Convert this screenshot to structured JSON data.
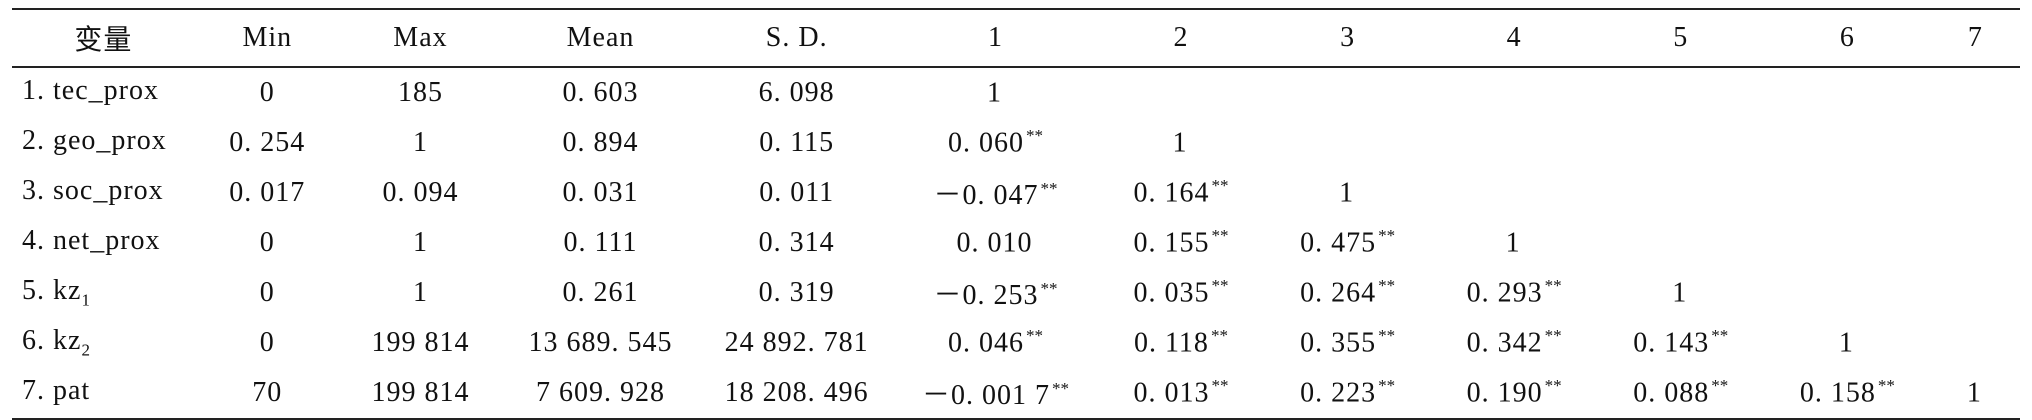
{
  "table": {
    "headers": [
      "变量",
      "Min",
      "Max",
      "Mean",
      "S. D.",
      "1",
      "2",
      "3",
      "4",
      "5",
      "6",
      "7"
    ],
    "rows": [
      {
        "label": "1. tec_prox",
        "label_sub": "",
        "min": "0",
        "max": "185",
        "mean": "0. 603",
        "sd": "6. 098",
        "corr": [
          {
            "v": "1",
            "s": ""
          },
          {
            "v": "",
            "s": ""
          },
          {
            "v": "",
            "s": ""
          },
          {
            "v": "",
            "s": ""
          },
          {
            "v": "",
            "s": ""
          },
          {
            "v": "",
            "s": ""
          },
          {
            "v": "",
            "s": ""
          }
        ]
      },
      {
        "label": "2. geo_prox",
        "label_sub": "",
        "min": "0. 254",
        "max": "1",
        "mean": "0. 894",
        "sd": "0. 115",
        "corr": [
          {
            "v": "0. 060",
            "s": "**"
          },
          {
            "v": "1",
            "s": ""
          },
          {
            "v": "",
            "s": ""
          },
          {
            "v": "",
            "s": ""
          },
          {
            "v": "",
            "s": ""
          },
          {
            "v": "",
            "s": ""
          },
          {
            "v": "",
            "s": ""
          }
        ]
      },
      {
        "label": "3. soc_prox",
        "label_sub": "",
        "min": "0. 017",
        "max": "0. 094",
        "mean": "0. 031",
        "sd": "0. 011",
        "corr": [
          {
            "v": "－0. 047",
            "s": "**"
          },
          {
            "v": "0. 164",
            "s": "**"
          },
          {
            "v": "1",
            "s": ""
          },
          {
            "v": "",
            "s": ""
          },
          {
            "v": "",
            "s": ""
          },
          {
            "v": "",
            "s": ""
          },
          {
            "v": "",
            "s": ""
          }
        ]
      },
      {
        "label": "4. net_prox",
        "label_sub": "",
        "min": "0",
        "max": "1",
        "mean": "0. 111",
        "sd": "0. 314",
        "corr": [
          {
            "v": "0. 010",
            "s": ""
          },
          {
            "v": "0. 155",
            "s": "**"
          },
          {
            "v": "0. 475",
            "s": "**"
          },
          {
            "v": "1",
            "s": ""
          },
          {
            "v": "",
            "s": ""
          },
          {
            "v": "",
            "s": ""
          },
          {
            "v": "",
            "s": ""
          }
        ]
      },
      {
        "label": "5. kz",
        "label_sub": "1",
        "min": "0",
        "max": "1",
        "mean": "0. 261",
        "sd": "0. 319",
        "corr": [
          {
            "v": "－0. 253",
            "s": "**"
          },
          {
            "v": "0. 035",
            "s": "**"
          },
          {
            "v": "0. 264",
            "s": "**"
          },
          {
            "v": "0. 293",
            "s": "**"
          },
          {
            "v": "1",
            "s": ""
          },
          {
            "v": "",
            "s": ""
          },
          {
            "v": "",
            "s": ""
          }
        ]
      },
      {
        "label": "6. kz",
        "label_sub": "2",
        "min": "0",
        "max": "199 814",
        "mean": "13 689. 545",
        "sd": "24 892. 781",
        "corr": [
          {
            "v": "0. 046",
            "s": "**"
          },
          {
            "v": "0. 118",
            "s": "**"
          },
          {
            "v": "0. 355",
            "s": "**"
          },
          {
            "v": "0. 342",
            "s": "**"
          },
          {
            "v": "0. 143",
            "s": "**"
          },
          {
            "v": "1",
            "s": ""
          },
          {
            "v": "",
            "s": ""
          }
        ]
      },
      {
        "label": "7. pat",
        "label_sub": "",
        "min": "70",
        "max": "199 814",
        "mean": "7 609. 928",
        "sd": "18 208. 496",
        "corr": [
          {
            "v": "－0. 001 7",
            "s": "**"
          },
          {
            "v": "0. 013",
            "s": "**"
          },
          {
            "v": "0. 223",
            "s": "**"
          },
          {
            "v": "0. 190",
            "s": "**"
          },
          {
            "v": "0. 088",
            "s": "**"
          },
          {
            "v": "0. 158",
            "s": "**"
          },
          {
            "v": "1",
            "s": ""
          }
        ]
      }
    ]
  }
}
